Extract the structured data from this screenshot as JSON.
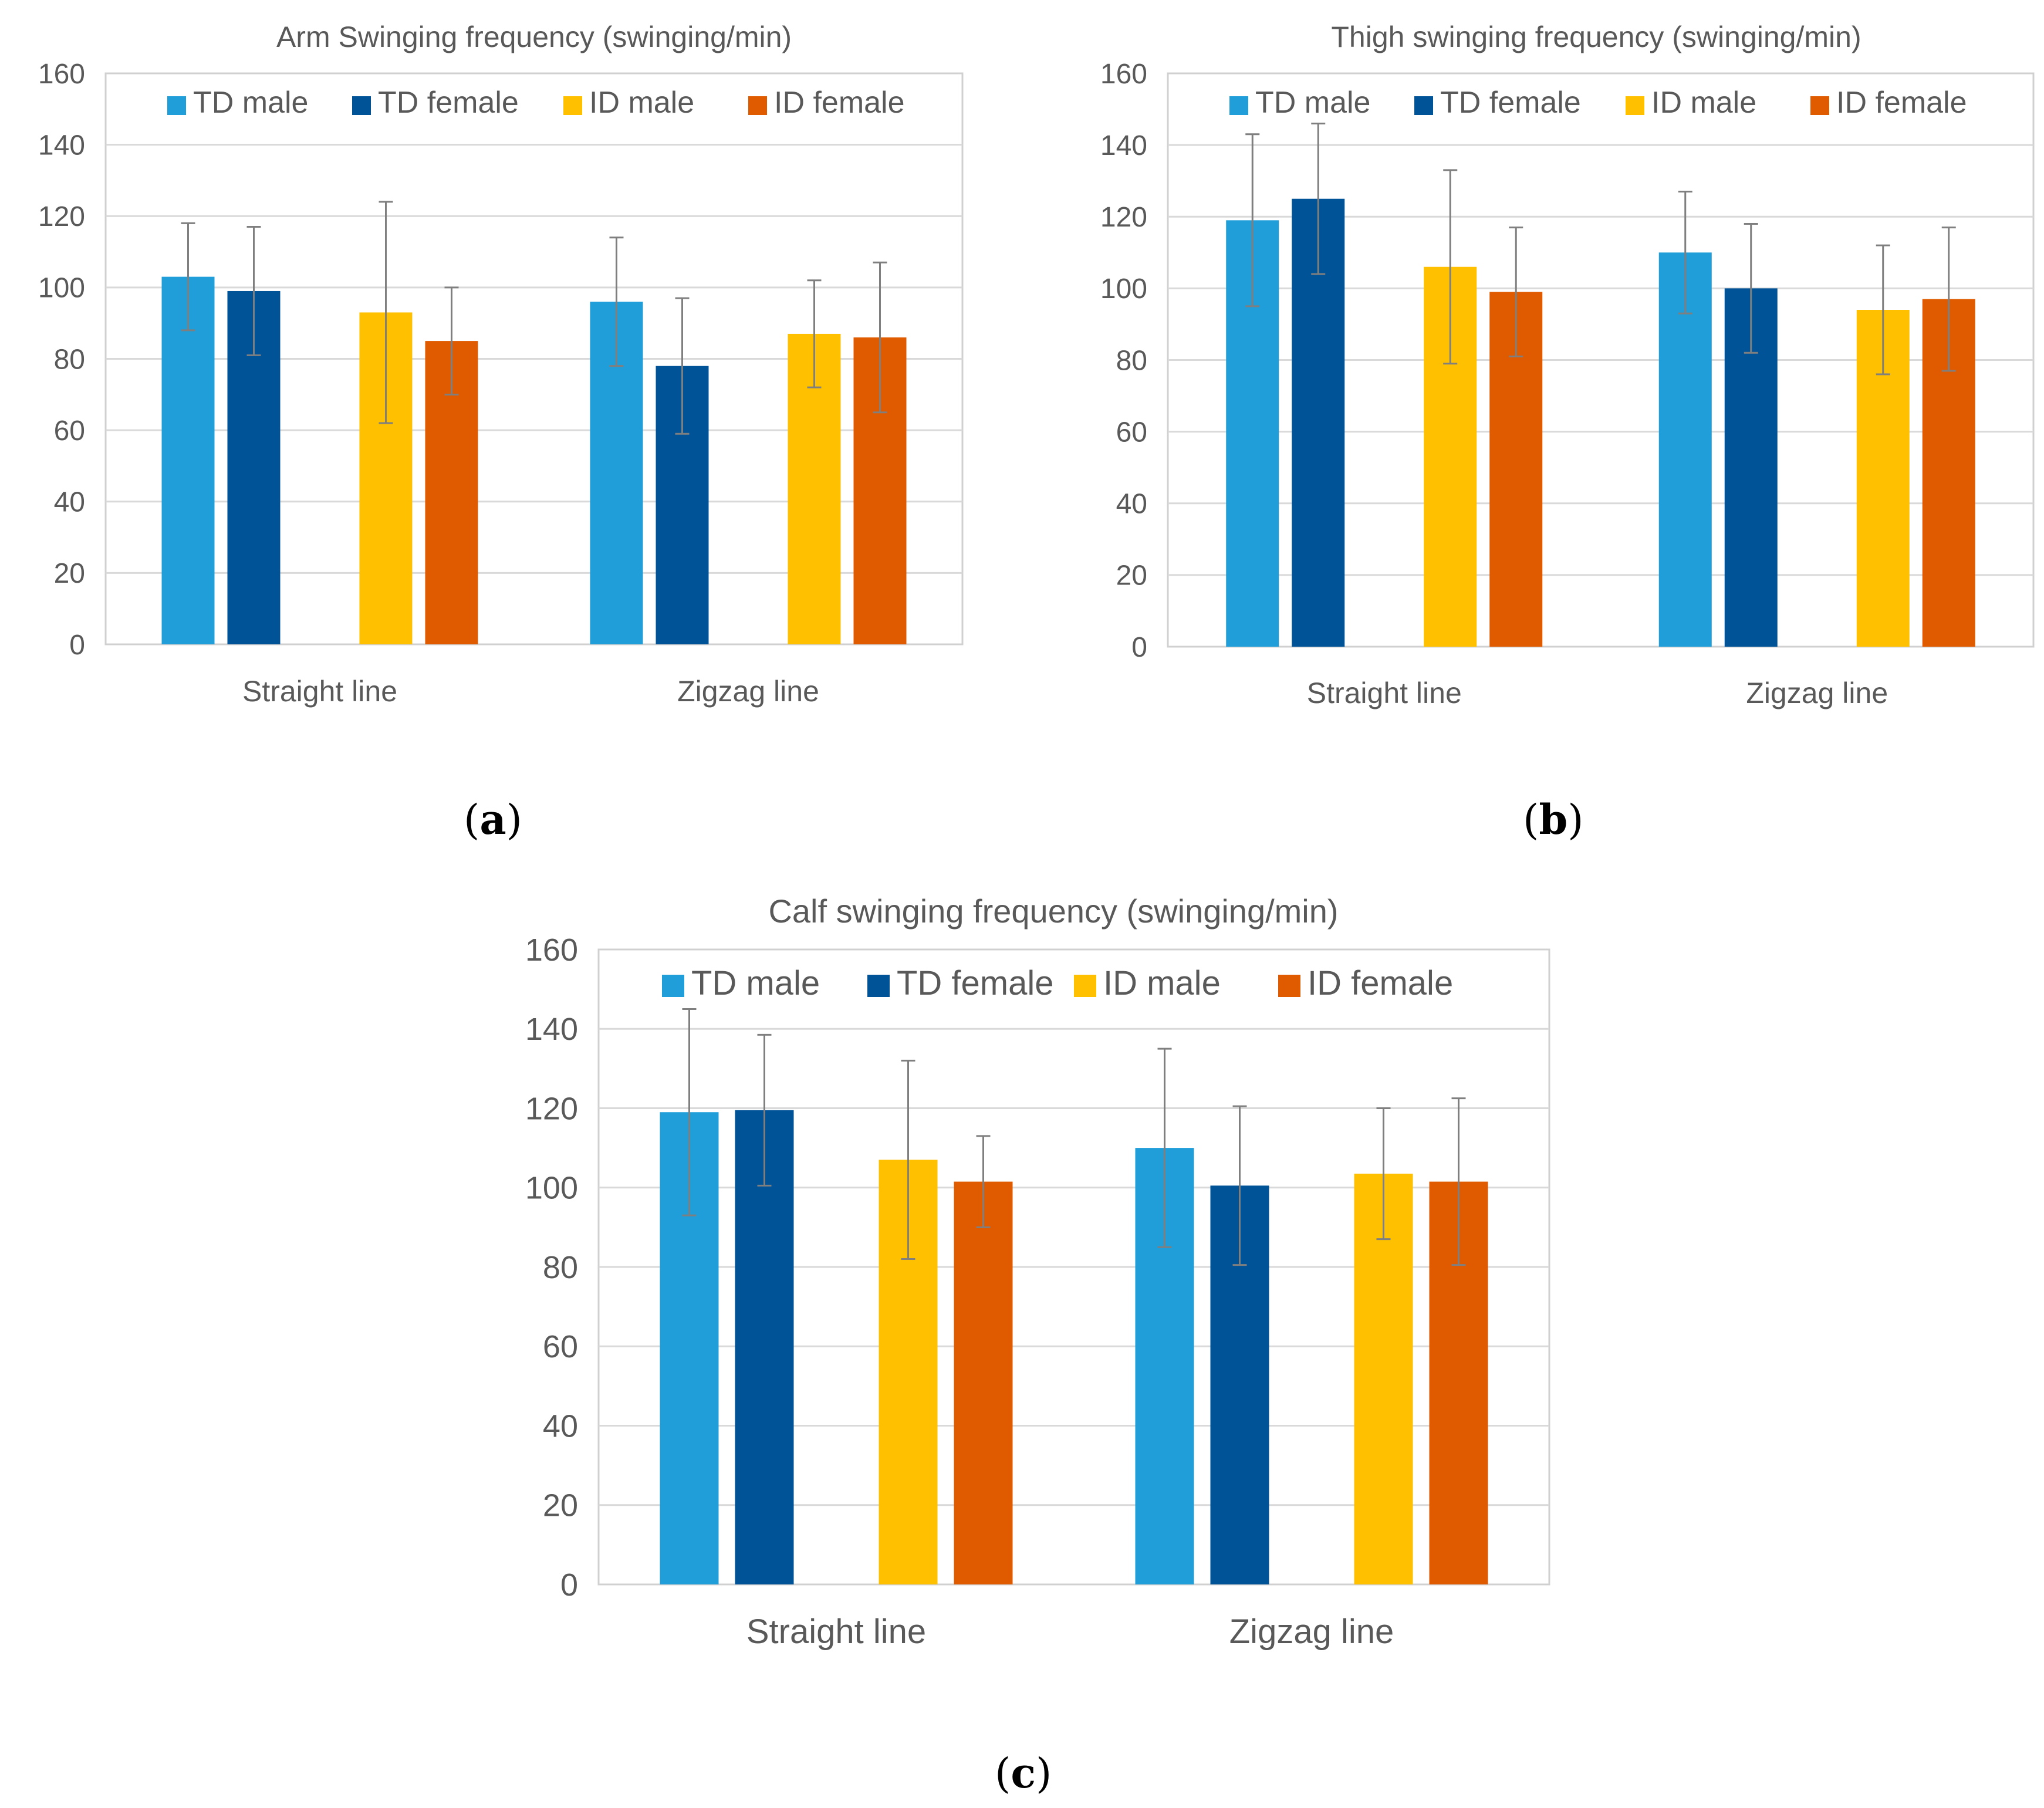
{
  "chart_data": [
    {
      "id": "a",
      "type": "bar",
      "title": "Arm Swinging frequency (swinging/min)",
      "categories": [
        "Straight line",
        "Zigzag line"
      ],
      "ylim": [
        0,
        160
      ],
      "yticks": [
        0,
        20,
        40,
        60,
        80,
        100,
        120,
        140,
        160
      ],
      "gridlines": true,
      "legend_position": "top",
      "series": [
        {
          "name": "TD male",
          "color": "#1F9ED9",
          "values": [
            103,
            96
          ],
          "errors": [
            15,
            18
          ]
        },
        {
          "name": "TD female",
          "color": "#005397",
          "values": [
            99,
            78
          ],
          "errors": [
            18,
            19
          ]
        },
        {
          "name": "ID male",
          "color": "#FFC000",
          "values": [
            93,
            87
          ],
          "errors": [
            31,
            15
          ]
        },
        {
          "name": "ID female",
          "color": "#E05A00",
          "values": [
            85,
            86
          ],
          "errors": [
            15,
            21
          ]
        }
      ]
    },
    {
      "id": "b",
      "type": "bar",
      "title": "Thigh swinging frequency (swinging/min)",
      "categories": [
        "Straight line",
        "Zigzag line"
      ],
      "ylim": [
        0,
        160
      ],
      "yticks": [
        0,
        20,
        40,
        60,
        80,
        100,
        120,
        140,
        160
      ],
      "gridlines": true,
      "legend_position": "top",
      "series": [
        {
          "name": "TD male",
          "color": "#1F9ED9",
          "values": [
            119,
            110
          ],
          "errors": [
            24,
            17
          ]
        },
        {
          "name": "TD female",
          "color": "#005397",
          "values": [
            125,
            100
          ],
          "errors": [
            21,
            18
          ]
        },
        {
          "name": "ID male",
          "color": "#FFC000",
          "values": [
            106,
            94
          ],
          "errors": [
            27,
            18
          ]
        },
        {
          "name": "ID female",
          "color": "#E05A00",
          "values": [
            99,
            97
          ],
          "errors": [
            18,
            20
          ]
        }
      ]
    },
    {
      "id": "c",
      "type": "bar",
      "title": "Calf swinging frequency (swinging/min)",
      "categories": [
        "Straight line",
        "Zigzag line"
      ],
      "ylim": [
        0,
        160
      ],
      "yticks": [
        0,
        20,
        40,
        60,
        80,
        100,
        120,
        140,
        160
      ],
      "gridlines": true,
      "legend_position": "top",
      "series": [
        {
          "name": "TD male",
          "color": "#1F9ED9",
          "values": [
            119,
            110
          ],
          "errors": [
            26,
            25
          ]
        },
        {
          "name": "TD female",
          "color": "#005397",
          "values": [
            119.5,
            100.5
          ],
          "errors": [
            19,
            20
          ]
        },
        {
          "name": "ID male",
          "color": "#FFC000",
          "values": [
            107,
            103.5
          ],
          "errors": [
            25,
            16.5
          ]
        },
        {
          "name": "ID female",
          "color": "#E05A00",
          "values": [
            101.5,
            101.5
          ],
          "errors": [
            11.5,
            21
          ]
        }
      ]
    }
  ],
  "panel_labels": {
    "a": "a",
    "b": "b",
    "c": "c"
  }
}
